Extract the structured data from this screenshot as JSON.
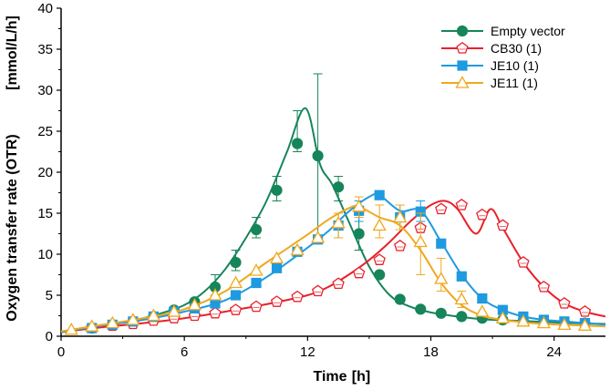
{
  "chart_data": {
    "type": "line",
    "title": "",
    "xlabel": "Time",
    "xlabel_unit": "[h]",
    "ylabel": "Oxygen transfer rate (OTR)",
    "ylabel_unit": "[mmol/L/h]",
    "xlim": [
      0,
      26.5
    ],
    "ylim": [
      0,
      40
    ],
    "xticks": [
      0,
      6,
      12,
      18,
      24
    ],
    "yticks": [
      0,
      5,
      10,
      15,
      20,
      25,
      30,
      35,
      40
    ],
    "grid": false,
    "legend_position": "top-right",
    "series": [
      {
        "name": "Empty vector",
        "color": "#16855a",
        "marker": "circle",
        "marker_fill": "#16855a",
        "curve_x": [
          0,
          1,
          2,
          3,
          4,
          5,
          6,
          7,
          8,
          9,
          10,
          11,
          11.9,
          12.6,
          13.2,
          14,
          15,
          16,
          17,
          18,
          19,
          20,
          21,
          22,
          23,
          24,
          25,
          26.5
        ],
        "curve_y": [
          0.5,
          0.9,
          1.3,
          1.7,
          2.2,
          2.9,
          3.8,
          5.5,
          8.2,
          12,
          16.5,
          22.5,
          27.8,
          21,
          18.5,
          14,
          8.5,
          5,
          3.6,
          2.9,
          2.5,
          2.2,
          2.0,
          1.9,
          1.8,
          1.7,
          1.6,
          1.5
        ],
        "marker_x": [
          1.5,
          2.5,
          3.5,
          4.5,
          5.5,
          6.5,
          7.5,
          8.5,
          9.5,
          10.5,
          11.5,
          12.5,
          13.5,
          14.5,
          15.5,
          16.5,
          17.5,
          18.5,
          19.5,
          20.5,
          21.5,
          22.5,
          23.5,
          24.5,
          25.5
        ],
        "marker_y": [
          1.0,
          1.4,
          1.8,
          2.4,
          3.2,
          4.2,
          6.0,
          9.0,
          13.0,
          17.8,
          23.5,
          22.0,
          18.2,
          12.5,
          7.5,
          4.5,
          3.3,
          2.8,
          2.4,
          2.2,
          2.0,
          1.9,
          1.8,
          1.7,
          1.6
        ],
        "error_x": [
          7.5,
          8.5,
          9.5,
          10.5,
          11.5,
          12.5,
          13.5,
          14.5
        ],
        "error_low": [
          5.0,
          8.0,
          12.0,
          16.5,
          22.5,
          12.0,
          16.5,
          10.5
        ],
        "error_high": [
          7.5,
          10.5,
          14.5,
          19.5,
          27.5,
          32.0,
          19.5,
          15.0
        ]
      },
      {
        "name": "CB30 (1)",
        "color": "#e8212a",
        "marker": "pentagon",
        "marker_fill": "#ffffff",
        "curve_x": [
          0,
          2,
          4,
          6,
          8,
          10,
          12,
          13,
          14,
          15,
          16,
          17,
          18,
          18.7,
          19.3,
          20.2,
          20.9,
          21.5,
          22.5,
          23.5,
          24.5,
          25.5,
          26.5
        ],
        "curve_y": [
          0.5,
          1.1,
          1.6,
          2.2,
          3.0,
          3.9,
          5.0,
          6.0,
          7.5,
          9.3,
          11.5,
          14.0,
          16.0,
          16.5,
          15.5,
          12.5,
          15.5,
          13.2,
          9.0,
          6.0,
          4.0,
          3.0,
          2.4
        ],
        "marker_x": [
          1.5,
          2.5,
          3.5,
          4.5,
          5.5,
          6.5,
          7.5,
          8.5,
          9.5,
          10.5,
          11.5,
          12.5,
          13.5,
          14.5,
          15.5,
          16.5,
          17.5,
          18.5,
          19.5,
          20.5,
          21.5,
          22.5,
          23.5,
          24.5,
          25.5
        ],
        "marker_y": [
          1.0,
          1.3,
          1.5,
          1.9,
          2.2,
          2.5,
          2.8,
          3.2,
          3.6,
          4.2,
          4.8,
          5.5,
          6.4,
          7.7,
          9.3,
          11.0,
          13.2,
          15.5,
          16.0,
          14.8,
          13.5,
          9.0,
          6.0,
          4.0,
          3.0
        ],
        "error_x": [],
        "error_low": [],
        "error_high": []
      },
      {
        "name": "JE10 (1)",
        "color": "#1e9ae0",
        "marker": "square",
        "marker_fill": "#1e9ae0",
        "curve_x": [
          0,
          2,
          4,
          6,
          8,
          10,
          12,
          13,
          14,
          15,
          15.5,
          16.5,
          17.5,
          18.5,
          19.5,
          20.5,
          21.5,
          22.5,
          23.5,
          24.5,
          25.5,
          26.5
        ],
        "curve_y": [
          0.5,
          1.3,
          2.0,
          3.0,
          4.4,
          7.2,
          10.8,
          12.8,
          15.2,
          17.0,
          17.2,
          15.3,
          15.3,
          11.5,
          7.5,
          4.6,
          3.2,
          2.4,
          2.0,
          1.8,
          1.6,
          1.4
        ],
        "marker_x": [
          1.5,
          2.5,
          3.5,
          4.5,
          5.5,
          6.5,
          7.5,
          8.5,
          9.5,
          10.5,
          11.5,
          12.5,
          13.5,
          14.5,
          15.5,
          16.5,
          17.5,
          18.5,
          19.5,
          20.5,
          21.5,
          22.5,
          23.5,
          24.5,
          25.5
        ],
        "marker_y": [
          1.0,
          1.4,
          1.8,
          2.4,
          3.0,
          3.4,
          4.0,
          5.0,
          6.5,
          8.3,
          10.3,
          11.8,
          13.5,
          15.3,
          17.2,
          14.5,
          15.2,
          11.3,
          7.3,
          4.6,
          3.2,
          2.4,
          2.0,
          1.8,
          1.6
        ],
        "error_x": [
          13.5,
          14.5,
          16.5,
          17.5
        ],
        "error_low": [
          12.0,
          14.0,
          13.0,
          14.0
        ],
        "error_high": [
          15.0,
          16.5,
          16.0,
          16.5
        ]
      },
      {
        "name": "JE11 (1)",
        "color": "#f0a81e",
        "marker": "triangle",
        "marker_fill": "#ffffff",
        "curve_x": [
          0,
          2,
          4,
          6,
          8,
          10,
          12,
          13,
          14,
          14.5,
          15.5,
          16.5,
          17.5,
          18.5,
          19.5,
          20.5,
          21.5,
          22.5,
          23.5,
          24.5,
          25.5,
          26.5
        ],
        "curve_y": [
          0.6,
          1.4,
          2.2,
          3.3,
          5.5,
          9.0,
          12.4,
          14.2,
          15.6,
          15.8,
          14.5,
          13.5,
          10.5,
          6.5,
          3.8,
          2.5,
          2.0,
          1.7,
          1.5,
          1.4,
          1.3,
          1.2
        ],
        "marker_x": [
          0.5,
          1.5,
          2.5,
          3.5,
          4.5,
          5.5,
          6.5,
          7.5,
          8.5,
          9.5,
          10.5,
          11.5,
          12.5,
          13.5,
          14.5,
          15.5,
          16.5,
          17.5,
          18.5,
          19.5,
          20.5,
          21.5,
          22.5,
          23.5,
          24.5,
          25.5
        ],
        "marker_y": [
          0.8,
          1.2,
          1.6,
          2.0,
          2.5,
          3.0,
          3.8,
          5.0,
          6.5,
          8.0,
          9.5,
          10.5,
          12.0,
          13.8,
          15.8,
          13.5,
          14.5,
          11.5,
          7.0,
          4.5,
          3.0,
          2.2,
          1.8,
          1.6,
          1.4,
          1.3
        ],
        "error_x": [
          13.5,
          14.5,
          15.5,
          16.5,
          17.5,
          18.5,
          19.5
        ],
        "error_low": [
          12.0,
          14.5,
          12.0,
          13.0,
          7.5,
          5.5,
          3.5
        ],
        "error_high": [
          15.0,
          17.0,
          16.0,
          16.0,
          15.0,
          9.5,
          5.5
        ]
      }
    ]
  }
}
